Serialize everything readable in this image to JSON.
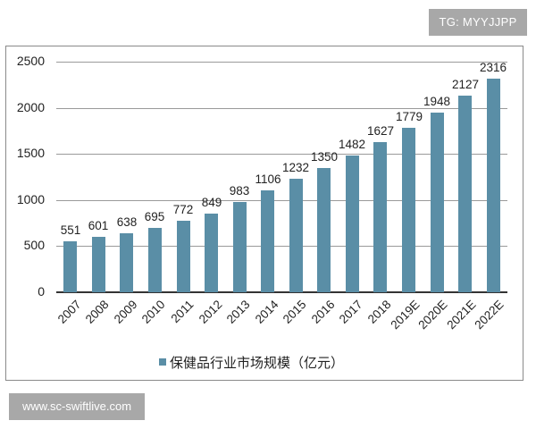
{
  "watermarks": {
    "top": "TG: MYYJJPP",
    "bottom": "www.sc-swiftlive.com"
  },
  "legend": {
    "label": "保健品行业市场规模（亿元）"
  },
  "colors": {
    "bar": "#5a8ea6",
    "grid": "#9a9a9a",
    "watermark_bg": "#a8a8a8"
  },
  "chart_data": {
    "type": "bar",
    "title": "",
    "xlabel": "",
    "ylabel": "",
    "ylim": [
      0,
      2500
    ],
    "yticks": [
      0,
      500,
      1000,
      1500,
      2000,
      2500
    ],
    "grid": true,
    "legend_position": "bottom",
    "categories": [
      "2007",
      "2008",
      "2009",
      "2010",
      "2011",
      "2012",
      "2013",
      "2014",
      "2015",
      "2016",
      "2017",
      "2018",
      "2019E",
      "2020E",
      "2021E",
      "2022E"
    ],
    "series": [
      {
        "name": "保健品行业市场规模（亿元）",
        "values": [
          551,
          601,
          638,
          695,
          772,
          849,
          983,
          1106,
          1232,
          1350,
          1482,
          1627,
          1779,
          1948,
          2127,
          2316
        ]
      }
    ]
  }
}
